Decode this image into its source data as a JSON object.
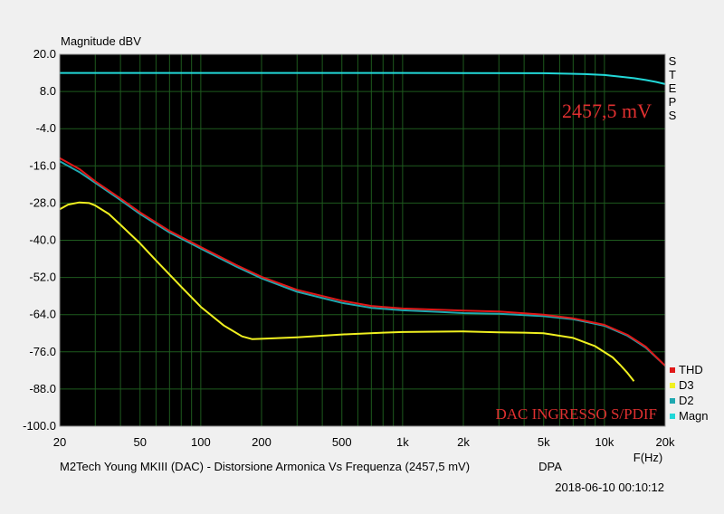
{
  "chart_data": {
    "type": "line",
    "title": "M2Tech Young MKIII (DAC) - Distorsione Armonica Vs Frequenza (2457,5 mV)",
    "title_suffix": "DPA",
    "timestamp": "2018-06-10 00:10:12",
    "ylabel": "Magnitude dBV",
    "xlabel": "F(Hz)",
    "x_scale": "log",
    "xlim": [
      20,
      20000
    ],
    "ylim": [
      -100,
      20
    ],
    "y_ticks": [
      "20.0",
      "8.0",
      "-4.0",
      "-16.0",
      "-28.0",
      "-40.0",
      "-52.0",
      "-64.0",
      "-76.0",
      "-88.0",
      "-100.0"
    ],
    "x_ticks": [
      {
        "value": 20,
        "label": "20"
      },
      {
        "value": 50,
        "label": "50"
      },
      {
        "value": 100,
        "label": "100"
      },
      {
        "value": 200,
        "label": "200"
      },
      {
        "value": 500,
        "label": "500"
      },
      {
        "value": 1000,
        "label": "1k"
      },
      {
        "value": 2000,
        "label": "2k"
      },
      {
        "value": 5000,
        "label": "5k"
      },
      {
        "value": 10000,
        "label": "10k"
      },
      {
        "value": 20000,
        "label": "20k"
      }
    ],
    "annotations": {
      "level": "2457,5 mV",
      "input": "DAC INGRESSO S/PDIF",
      "steps": "STEPS"
    },
    "grid": true,
    "legend_position": "bottom-right",
    "series": [
      {
        "name": "Magn",
        "color": "#22d8d8",
        "x": [
          20,
          100,
          1000,
          5000,
          8000,
          10000,
          12000,
          14000,
          16000,
          18000,
          20000
        ],
        "y": [
          14.0,
          14.0,
          14.0,
          13.9,
          13.6,
          13.3,
          12.8,
          12.3,
          11.7,
          11.1,
          10.4
        ]
      },
      {
        "name": "D2",
        "color": "#1fa8b0",
        "x": [
          20,
          25,
          30,
          40,
          50,
          70,
          100,
          150,
          200,
          300,
          500,
          700,
          1000,
          1500,
          2000,
          3000,
          5000,
          7000,
          10000,
          13000,
          16000,
          20000
        ],
        "y": [
          -14.5,
          -18,
          -21.5,
          -27,
          -31.5,
          -37.5,
          -42.7,
          -48.5,
          -52.3,
          -56.6,
          -60.2,
          -61.8,
          -62.6,
          -63.1,
          -63.5,
          -63.7,
          -64.5,
          -65.5,
          -67.6,
          -70.8,
          -74.6,
          -80.5
        ]
      },
      {
        "name": "THD",
        "color": "#e01818",
        "x": [
          20,
          25,
          30,
          40,
          50,
          70,
          100,
          150,
          200,
          300,
          500,
          700,
          1000,
          1500,
          2000,
          3000,
          5000,
          7000,
          10000,
          13000,
          16000,
          20000
        ],
        "y": [
          -13.5,
          -17,
          -21,
          -26.5,
          -31,
          -37,
          -42.2,
          -48,
          -51.8,
          -56,
          -59.5,
          -61.2,
          -62,
          -62.4,
          -62.7,
          -63,
          -64,
          -65.2,
          -67.3,
          -70.5,
          -74.3,
          -80.5
        ]
      },
      {
        "name": "D3",
        "color": "#f0f020",
        "x": [
          20,
          22,
          25,
          28,
          30,
          35,
          40,
          50,
          60,
          80,
          100,
          130,
          160,
          180,
          200,
          300,
          500,
          800,
          1000,
          2000,
          3000,
          4000,
          5000,
          7000,
          9000,
          11000,
          12000,
          13000,
          14000
        ],
        "y": [
          -30,
          -28.5,
          -27.8,
          -28,
          -28.8,
          -31.5,
          -35,
          -41,
          -46.5,
          -55,
          -61.5,
          -67.5,
          -71,
          -71.9,
          -71.8,
          -71.3,
          -70.4,
          -69.8,
          -69.6,
          -69.4,
          -69.7,
          -69.8,
          -70,
          -71.5,
          -74.2,
          -77.8,
          -80.3,
          -82.8,
          -85.5
        ]
      }
    ]
  }
}
